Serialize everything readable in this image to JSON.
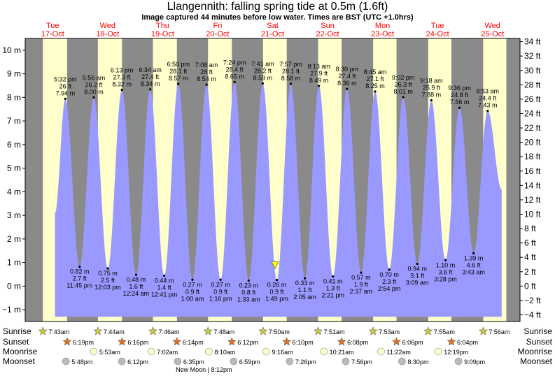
{
  "header": {
    "title": "Llangennith: falling  spring tide at 0.5m (1.6ft)",
    "subtitle": "Image captured 44 minutes before low water. Times are BST (UTC +1.0hrs)"
  },
  "chart_data": {
    "type": "area",
    "title": "Llangennith: falling  spring tide at 0.5m (1.6ft)",
    "subtitle": "Image captured 44 minutes before low water. Times are BST (UTC +1.0hrs)",
    "x_start": "2023-10-17T00:00",
    "x_end": "2023-10-25T24:00",
    "y_left_unit": "m",
    "y_left_range": [
      -1.5,
      10.5
    ],
    "y_left_ticks": [
      -1,
      0,
      1,
      2,
      3,
      4,
      5,
      6,
      7,
      8,
      9,
      10
    ],
    "y_right_unit": "ft",
    "y_right_ticks": [
      -4,
      -2,
      0,
      2,
      4,
      6,
      8,
      10,
      12,
      14,
      16,
      18,
      20,
      22,
      24,
      26,
      28,
      30,
      32,
      34
    ],
    "days": [
      {
        "weekday": "Tue",
        "date": "17-Oct"
      },
      {
        "weekday": "Wed",
        "date": "18-Oct"
      },
      {
        "weekday": "Thu",
        "date": "19-Oct"
      },
      {
        "weekday": "Fri",
        "date": "20-Oct"
      },
      {
        "weekday": "Sat",
        "date": "21-Oct"
      },
      {
        "weekday": "Sun",
        "date": "22-Oct"
      },
      {
        "weekday": "Mon",
        "date": "23-Oct"
      },
      {
        "weekday": "Tue",
        "date": "24-Oct"
      },
      {
        "weekday": "Wed",
        "date": "25-Oct"
      }
    ],
    "day_spans": [
      {
        "sunrise": "2023-10-17T07:43",
        "sunset": "2023-10-17T18:19"
      },
      {
        "sunrise": "2023-10-18T07:44",
        "sunset": "2023-10-18T18:16"
      },
      {
        "sunrise": "2023-10-19T07:46",
        "sunset": "2023-10-19T18:14"
      },
      {
        "sunrise": "2023-10-20T07:48",
        "sunset": "2023-10-20T18:12"
      },
      {
        "sunrise": "2023-10-21T07:50",
        "sunset": "2023-10-21T18:10"
      },
      {
        "sunrise": "2023-10-22T07:51",
        "sunset": "2023-10-22T18:08"
      },
      {
        "sunrise": "2023-10-23T07:53",
        "sunset": "2023-10-23T18:06"
      },
      {
        "sunrise": "2023-10-24T07:55",
        "sunset": "2023-10-24T18:04"
      },
      {
        "sunrise": "2023-10-25T07:56",
        "sunset": "2023-10-25T18:02"
      }
    ],
    "series": [
      {
        "tides": [
          {
            "time": "2023-10-17T17:32",
            "label": "5:32 pm",
            "m": 7.94,
            "ft": 26.0,
            "type": "high"
          },
          {
            "time": "2023-10-17T23:45",
            "label": "11:45 pm",
            "m": 0.82,
            "ft": 2.7,
            "type": "low"
          },
          {
            "time": "2023-10-18T05:56",
            "label": "5:56 am",
            "m": 8.0,
            "ft": 26.2,
            "type": "high"
          },
          {
            "time": "2023-10-18T12:03",
            "label": "12:03 pm",
            "m": 0.75,
            "ft": 2.5,
            "type": "low"
          },
          {
            "time": "2023-10-18T18:13",
            "label": "6:13 pm",
            "m": 8.32,
            "ft": 27.3,
            "type": "high"
          },
          {
            "time": "2023-10-19T00:24",
            "label": "12:24 am",
            "m": 0.48,
            "ft": 1.6,
            "type": "low"
          },
          {
            "time": "2023-10-19T06:34",
            "label": "6:34 am",
            "m": 8.34,
            "ft": 27.4,
            "type": "high"
          },
          {
            "time": "2023-10-19T12:41",
            "label": "12:41 pm",
            "m": 0.44,
            "ft": 1.4,
            "type": "low"
          },
          {
            "time": "2023-10-19T18:50",
            "label": "6:50 pm",
            "m": 8.57,
            "ft": 28.1,
            "type": "high"
          },
          {
            "time": "2023-10-20T01:00",
            "label": "1:00 am",
            "m": 0.27,
            "ft": 0.9,
            "type": "low"
          },
          {
            "time": "2023-10-20T07:08",
            "label": "7:08 am",
            "m": 8.54,
            "ft": 28.0,
            "type": "high"
          },
          {
            "time": "2023-10-20T13:16",
            "label": "1:16 pm",
            "m": 0.27,
            "ft": 0.9,
            "type": "low"
          },
          {
            "time": "2023-10-20T19:24",
            "label": "7:24 pm",
            "m": 8.65,
            "ft": 28.4,
            "type": "high"
          },
          {
            "time": "2023-10-21T01:33",
            "label": "1:33 am",
            "m": 0.23,
            "ft": 0.8,
            "type": "low"
          },
          {
            "time": "2023-10-21T07:41",
            "label": "7:41 am",
            "m": 8.59,
            "ft": 28.2,
            "type": "high"
          },
          {
            "time": "2023-10-21T13:49",
            "label": "1:49 pm",
            "m": 0.26,
            "ft": 0.9,
            "type": "low"
          },
          {
            "time": "2023-10-21T19:57",
            "label": "7:57 pm",
            "m": 8.58,
            "ft": 28.1,
            "type": "high"
          },
          {
            "time": "2023-10-22T02:05",
            "label": "2:05 am",
            "m": 0.33,
            "ft": 1.1,
            "type": "low"
          },
          {
            "time": "2023-10-22T08:13",
            "label": "8:13 am",
            "m": 8.49,
            "ft": 27.9,
            "type": "high"
          },
          {
            "time": "2023-10-22T14:21",
            "label": "2:21 pm",
            "m": 0.41,
            "ft": 1.3,
            "type": "low"
          },
          {
            "time": "2023-10-22T20:30",
            "label": "8:30 pm",
            "m": 8.36,
            "ft": 27.4,
            "type": "high"
          },
          {
            "time": "2023-10-23T02:37",
            "label": "2:37 am",
            "m": 0.57,
            "ft": 1.9,
            "type": "low"
          },
          {
            "time": "2023-10-23T08:45",
            "label": "8:45 am",
            "m": 8.25,
            "ft": 27.1,
            "type": "high"
          },
          {
            "time": "2023-10-23T14:54",
            "label": "2:54 pm",
            "m": 0.7,
            "ft": 2.3,
            "type": "low"
          },
          {
            "time": "2023-10-23T21:02",
            "label": "9:02 pm",
            "m": 8.01,
            "ft": 26.3,
            "type": "high"
          },
          {
            "time": "2023-10-24T03:09",
            "label": "3:09 am",
            "m": 0.94,
            "ft": 3.1,
            "type": "low"
          },
          {
            "time": "2023-10-24T09:18",
            "label": "9:18 am",
            "m": 7.88,
            "ft": 25.9,
            "type": "high"
          },
          {
            "time": "2023-10-24T15:28",
            "label": "3:28 pm",
            "m": 1.1,
            "ft": 3.6,
            "type": "low"
          },
          {
            "time": "2023-10-24T21:36",
            "label": "9:36 pm",
            "m": 7.56,
            "ft": 24.8,
            "type": "high"
          },
          {
            "time": "2023-10-25T03:43",
            "label": "3:43 am",
            "m": 1.39,
            "ft": 4.6,
            "type": "low"
          },
          {
            "time": "2023-10-25T09:53",
            "label": "9:53 am",
            "m": 7.43,
            "ft": 24.4,
            "type": "high"
          }
        ]
      }
    ],
    "curve_start": {
      "time": "2023-10-17T13:00",
      "m": 3.1
    },
    "curve_end": {
      "time": "2023-10-25T16:00",
      "m": 4.1
    },
    "current": {
      "time": "2023-10-21T13:05",
      "m": 0.5
    },
    "rows": {
      "sunrise": {
        "label": "Sunrise",
        "items": [
          {
            "time": "2023-10-17T07:43",
            "text": "7:43am"
          },
          {
            "time": "2023-10-18T07:44",
            "text": "7:44am"
          },
          {
            "time": "2023-10-19T07:46",
            "text": "7:46am"
          },
          {
            "time": "2023-10-20T07:48",
            "text": "7:48am"
          },
          {
            "time": "2023-10-21T07:50",
            "text": "7:50am"
          },
          {
            "time": "2023-10-22T07:51",
            "text": "7:51am"
          },
          {
            "time": "2023-10-23T07:53",
            "text": "7:53am"
          },
          {
            "time": "2023-10-24T07:55",
            "text": "7:55am"
          },
          {
            "time": "2023-10-25T07:56",
            "text": "7:56am"
          }
        ]
      },
      "sunset": {
        "label": "Sunset",
        "items": [
          {
            "time": "2023-10-17T18:19",
            "text": "6:19pm"
          },
          {
            "time": "2023-10-18T18:16",
            "text": "6:16pm"
          },
          {
            "time": "2023-10-19T18:14",
            "text": "6:14pm"
          },
          {
            "time": "2023-10-20T18:12",
            "text": "6:12pm"
          },
          {
            "time": "2023-10-21T18:10",
            "text": "6:10pm"
          },
          {
            "time": "2023-10-22T18:08",
            "text": "6:08pm"
          },
          {
            "time": "2023-10-23T18:06",
            "text": "6:06pm"
          },
          {
            "time": "2023-10-24T18:04",
            "text": "6:04pm"
          }
        ]
      },
      "moonrise": {
        "label": "Moonrise",
        "items": [
          {
            "time": "2023-10-18T05:53",
            "text": "5:53am"
          },
          {
            "time": "2023-10-19T07:02",
            "text": "7:02am"
          },
          {
            "time": "2023-10-20T08:10",
            "text": "8:10am"
          },
          {
            "time": "2023-10-21T09:16",
            "text": "9:16am"
          },
          {
            "time": "2023-10-22T10:21",
            "text": "10:21am"
          },
          {
            "time": "2023-10-23T11:22",
            "text": "11:22am"
          },
          {
            "time": "2023-10-24T12:19",
            "text": "12:19pm"
          }
        ]
      },
      "moonset": {
        "label": "Moonset",
        "items": [
          {
            "time": "2023-10-17T17:48",
            "text": "5:48pm"
          },
          {
            "time": "2023-10-18T18:12",
            "text": "6:12pm"
          },
          {
            "time": "2023-10-19T18:35",
            "text": "6:35pm"
          },
          {
            "time": "2023-10-20T18:59",
            "text": "6:59pm"
          },
          {
            "time": "2023-10-21T19:26",
            "text": "7:26pm"
          },
          {
            "time": "2023-10-22T19:56",
            "text": "7:56pm"
          },
          {
            "time": "2023-10-23T20:30",
            "text": "8:30pm"
          },
          {
            "time": "2023-10-24T21:09",
            "text": "9:09pm"
          }
        ]
      }
    },
    "moon_phase": {
      "text": "New Moon | 8:12pm"
    },
    "colors": {
      "night": "#8a8a8a",
      "day": "#ffffcc",
      "tide": "#9999ff",
      "day_labels": "#ff0000",
      "sunrise_star": "#cccc33",
      "sunset_star": "#e07020",
      "moonrise": "#ffffcc",
      "moonset": "#bbbbbb",
      "current_marker": "#ffff00"
    }
  }
}
